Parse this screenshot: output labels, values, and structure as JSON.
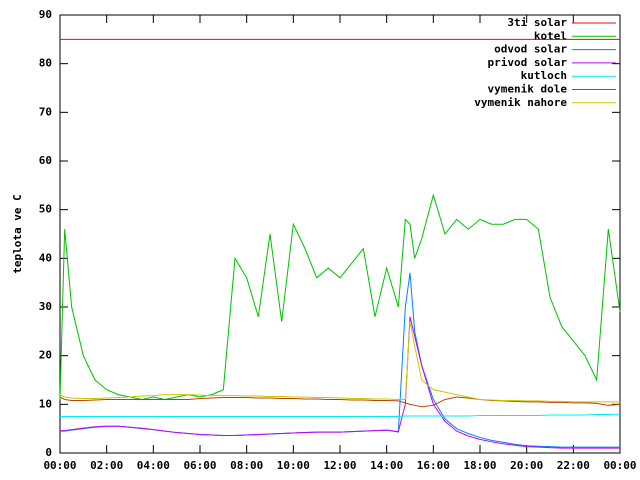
{
  "chart_data": {
    "type": "line",
    "y_label": "teplota ve C",
    "legend": "top-right",
    "grid": false,
    "x": [
      0,
      0.2,
      0.5,
      1,
      1.5,
      2,
      2.5,
      3,
      3.5,
      4,
      4.5,
      5,
      5.5,
      6,
      6.5,
      7,
      7.5,
      8,
      8.5,
      9,
      9.5,
      10,
      10.5,
      11,
      11.5,
      12,
      12.5,
      13,
      13.5,
      14,
      14.5,
      14.8,
      15,
      15.2,
      15.5,
      16,
      16.5,
      17,
      17.5,
      18,
      18.5,
      19,
      19.5,
      20,
      20.5,
      21,
      21.5,
      22,
      22.5,
      23,
      23.5,
      24
    ],
    "xlim": [
      0,
      24
    ],
    "ylim": [
      0,
      90
    ],
    "xticks": [
      {
        "value": 0,
        "label": "00:00"
      },
      {
        "value": 2,
        "label": "02:00"
      },
      {
        "value": 4,
        "label": "04:00"
      },
      {
        "value": 6,
        "label": "06:00"
      },
      {
        "value": 8,
        "label": "08:00"
      },
      {
        "value": 10,
        "label": "10:00"
      },
      {
        "value": 12,
        "label": "12:00"
      },
      {
        "value": 14,
        "label": "14:00"
      },
      {
        "value": 16,
        "label": "16:00"
      },
      {
        "value": 18,
        "label": "18:00"
      },
      {
        "value": 20,
        "label": "20:00"
      },
      {
        "value": 22,
        "label": "22:00"
      },
      {
        "value": 24,
        "label": "00:00"
      }
    ],
    "yticks": [
      0,
      10,
      20,
      30,
      40,
      50,
      60,
      70,
      80,
      90
    ],
    "series": [
      {
        "name": "3ti solar",
        "color": "#ff0000",
        "values": [
          85,
          85,
          85,
          85,
          85,
          85,
          85,
          85,
          85,
          85,
          85,
          85,
          85,
          85,
          85,
          85,
          85,
          85,
          85,
          85,
          85,
          85,
          85,
          85,
          85,
          85,
          85,
          85,
          85,
          85,
          85,
          85,
          85,
          85,
          85,
          85,
          85,
          85,
          85,
          85,
          85,
          85,
          85,
          85,
          85,
          85,
          85,
          85,
          85,
          85,
          85,
          85
        ]
      },
      {
        "name": "kotel",
        "color": "#00c000",
        "values": [
          11,
          46,
          30,
          20,
          15,
          13,
          12,
          11.5,
          11,
          11.5,
          11,
          11.5,
          12,
          11.5,
          12,
          13,
          40,
          36,
          28,
          45,
          27,
          47,
          42,
          36,
          38,
          36,
          39,
          42,
          28,
          38,
          30,
          48,
          47,
          40,
          44,
          53,
          45,
          48,
          46,
          48,
          47,
          47,
          48,
          48,
          46,
          32,
          26,
          23,
          20,
          15,
          46,
          29
        ]
      },
      {
        "name": "odvod solar",
        "color": "#0080ff",
        "values": [
          4.5,
          4.5,
          4.7,
          5,
          5.3,
          5.5,
          5.5,
          5.3,
          5,
          4.8,
          4.5,
          4.2,
          4,
          3.8,
          3.7,
          3.6,
          3.6,
          3.7,
          3.8,
          3.9,
          4,
          4.1,
          4.2,
          4.3,
          4.3,
          4.3,
          4.4,
          4.5,
          4.6,
          4.7,
          4.3,
          30,
          37,
          25,
          18,
          11,
          7,
          5,
          4,
          3.2,
          2.6,
          2.2,
          1.8,
          1.5,
          1.4,
          1.3,
          1.2,
          1.2,
          1.2,
          1.2,
          1.2,
          1.2
        ]
      },
      {
        "name": "privod solar",
        "color": "#c000ff",
        "values": [
          4.6,
          4.6,
          4.8,
          5.1,
          5.4,
          5.5,
          5.5,
          5.3,
          5.1,
          4.8,
          4.5,
          4.2,
          4,
          3.8,
          3.7,
          3.6,
          3.6,
          3.7,
          3.8,
          3.9,
          4,
          4.1,
          4.2,
          4.3,
          4.3,
          4.3,
          4.4,
          4.5,
          4.6,
          4.7,
          4.4,
          10,
          28,
          24,
          18,
          10,
          6.5,
          4.5,
          3.5,
          2.8,
          2.3,
          1.9,
          1.6,
          1.3,
          1.2,
          1.1,
          1,
          1,
          1,
          1,
          1,
          1
        ]
      },
      {
        "name": "kutloch",
        "color": "#00eeee",
        "values": [
          7.5,
          7.5,
          7.5,
          7.5,
          7.5,
          7.5,
          7.5,
          7.5,
          7.5,
          7.5,
          7.5,
          7.5,
          7.5,
          7.5,
          7.5,
          7.5,
          7.5,
          7.5,
          7.5,
          7.5,
          7.5,
          7.5,
          7.5,
          7.5,
          7.5,
          7.5,
          7.5,
          7.5,
          7.5,
          7.5,
          7.5,
          7.6,
          7.6,
          7.6,
          7.6,
          7.6,
          7.6,
          7.6,
          7.6,
          7.7,
          7.7,
          7.7,
          7.7,
          7.7,
          7.7,
          7.8,
          7.8,
          7.8,
          7.8,
          7.9,
          7.9,
          8
        ]
      },
      {
        "name": "vymenik dole",
        "color": "#c04000",
        "values": [
          11.5,
          11,
          10.8,
          10.8,
          10.9,
          11,
          11,
          11,
          11,
          11,
          11,
          11,
          11,
          11.2,
          11.3,
          11.4,
          11.4,
          11.4,
          11.3,
          11.3,
          11.2,
          11.2,
          11.1,
          11.1,
          11,
          11,
          10.9,
          10.9,
          10.8,
          10.8,
          10.7,
          10.3,
          10,
          9.8,
          9.5,
          9.8,
          11,
          11.5,
          11.3,
          11,
          10.8,
          10.7,
          10.6,
          10.5,
          10.5,
          10.4,
          10.4,
          10.3,
          10.3,
          10.2,
          9.8,
          10
        ]
      },
      {
        "name": "vymenik nahore",
        "color": "#c8c800",
        "values": [
          12,
          11.5,
          11.3,
          11.2,
          11.2,
          11.3,
          11.4,
          11.5,
          11.7,
          11.8,
          12,
          12,
          12,
          11.9,
          11.8,
          11.8,
          11.8,
          11.7,
          11.7,
          11.6,
          11.6,
          11.5,
          11.5,
          11.4,
          11.4,
          11.3,
          11.2,
          11.2,
          11.1,
          11.1,
          11,
          11,
          27,
          22,
          15,
          13,
          12.5,
          12,
          11.5,
          11,
          10.9,
          10.8,
          10.8,
          10.7,
          10.7,
          10.6,
          10.6,
          10.5,
          10.5,
          10.5,
          10.5,
          10.5
        ]
      }
    ]
  }
}
